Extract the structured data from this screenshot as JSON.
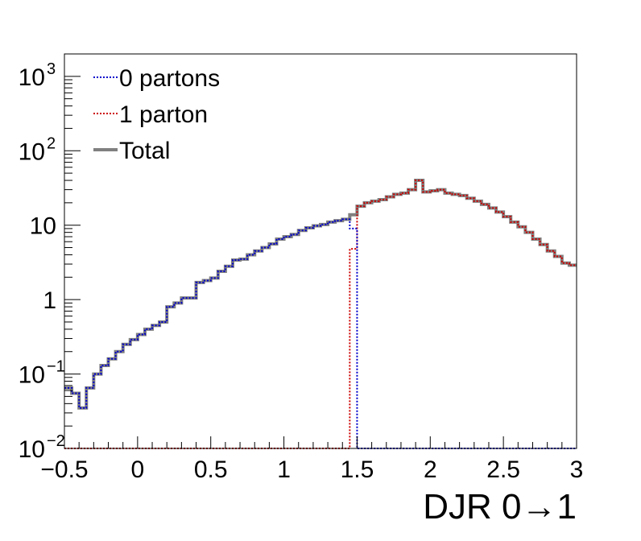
{
  "chart_data": {
    "type": "line",
    "xlabel": "DJR 0→1",
    "ylabel": "",
    "xlim": [
      -0.5,
      3
    ],
    "ylim": [
      0.01,
      2000
    ],
    "yscale": "log",
    "grid": false,
    "legend_position": "top-left",
    "x_ticks": [
      "−0.5",
      "0",
      "0.5",
      "1",
      "1.5",
      "2",
      "2.5",
      "3"
    ],
    "x_tick_values": [
      -0.5,
      0,
      0.5,
      1,
      1.5,
      2,
      2.5,
      3
    ],
    "y_ticks": [
      {
        "value": 0.01,
        "base": "10",
        "exp": "−2"
      },
      {
        "value": 0.1,
        "base": "10",
        "exp": "−1"
      },
      {
        "value": 1,
        "base": "1",
        "exp": ""
      },
      {
        "value": 10,
        "base": "10",
        "exp": ""
      },
      {
        "value": 100,
        "base": "10",
        "exp": "2"
      },
      {
        "value": 1000,
        "base": "10",
        "exp": "3"
      }
    ],
    "bin_width": 0.05,
    "bin_start": -0.5,
    "series": [
      {
        "name": "0 partons",
        "color": "#0000cc",
        "style": "dotted",
        "values": [
          0.065,
          0.055,
          0.035,
          0.065,
          0.1,
          0.13,
          0.16,
          0.2,
          0.25,
          0.29,
          0.34,
          0.4,
          0.45,
          0.5,
          0.8,
          0.9,
          1.05,
          1.05,
          1.7,
          1.8,
          1.95,
          2.4,
          2.8,
          3.4,
          3.5,
          4.0,
          4.5,
          5.0,
          5.6,
          6.5,
          7.0,
          7.5,
          8.5,
          9.2,
          9.8,
          10.2,
          11.0,
          11.5,
          12.0,
          9.0,
          0.01,
          0.01,
          0.01,
          0.01,
          0.01,
          0.01,
          0.01,
          0.01,
          0.01,
          0.01,
          0.01,
          0.01,
          0.01,
          0.01,
          0.01,
          0.01,
          0.01,
          0.01,
          0.01,
          0.01,
          0.01,
          0.01,
          0.01,
          0.01,
          0.01,
          0.01,
          0.01,
          0.01,
          0.01,
          0.01
        ]
      },
      {
        "name": "1 parton",
        "color": "#cc0000",
        "style": "dotted",
        "values": [
          0.01,
          0.01,
          0.01,
          0.01,
          0.01,
          0.01,
          0.01,
          0.01,
          0.01,
          0.01,
          0.01,
          0.01,
          0.01,
          0.01,
          0.01,
          0.01,
          0.01,
          0.01,
          0.01,
          0.01,
          0.01,
          0.01,
          0.01,
          0.01,
          0.01,
          0.01,
          0.01,
          0.01,
          0.01,
          0.01,
          0.01,
          0.01,
          0.01,
          0.01,
          0.01,
          0.01,
          0.01,
          0.01,
          0.01,
          4.8,
          18.0,
          20.0,
          21.0,
          22.0,
          24.0,
          26.0,
          27.0,
          30.0,
          40.0,
          28.0,
          29.0,
          30.0,
          27.0,
          26.0,
          25.0,
          23.0,
          21.0,
          19.0,
          17.0,
          15.0,
          13.0,
          11.0,
          9.5,
          8.0,
          6.5,
          5.5,
          4.5,
          3.8,
          3.1,
          2.9
        ]
      },
      {
        "name": "Total",
        "color": "#808080",
        "style": "solid",
        "values": [
          0.065,
          0.055,
          0.035,
          0.065,
          0.1,
          0.13,
          0.16,
          0.2,
          0.25,
          0.29,
          0.34,
          0.4,
          0.45,
          0.5,
          0.8,
          0.9,
          1.05,
          1.05,
          1.7,
          1.8,
          1.95,
          2.4,
          2.8,
          3.4,
          3.5,
          4.0,
          4.5,
          5.0,
          5.6,
          6.5,
          7.0,
          7.5,
          8.5,
          9.2,
          9.8,
          10.2,
          11.0,
          11.5,
          12.0,
          13.8,
          18.0,
          20.0,
          21.0,
          22.0,
          24.0,
          26.0,
          27.0,
          30.0,
          40.0,
          28.0,
          29.0,
          30.0,
          27.0,
          26.0,
          25.0,
          23.0,
          21.0,
          19.0,
          17.0,
          15.0,
          13.0,
          11.0,
          9.5,
          8.0,
          6.5,
          5.5,
          4.5,
          3.8,
          3.1,
          2.9
        ]
      }
    ]
  }
}
